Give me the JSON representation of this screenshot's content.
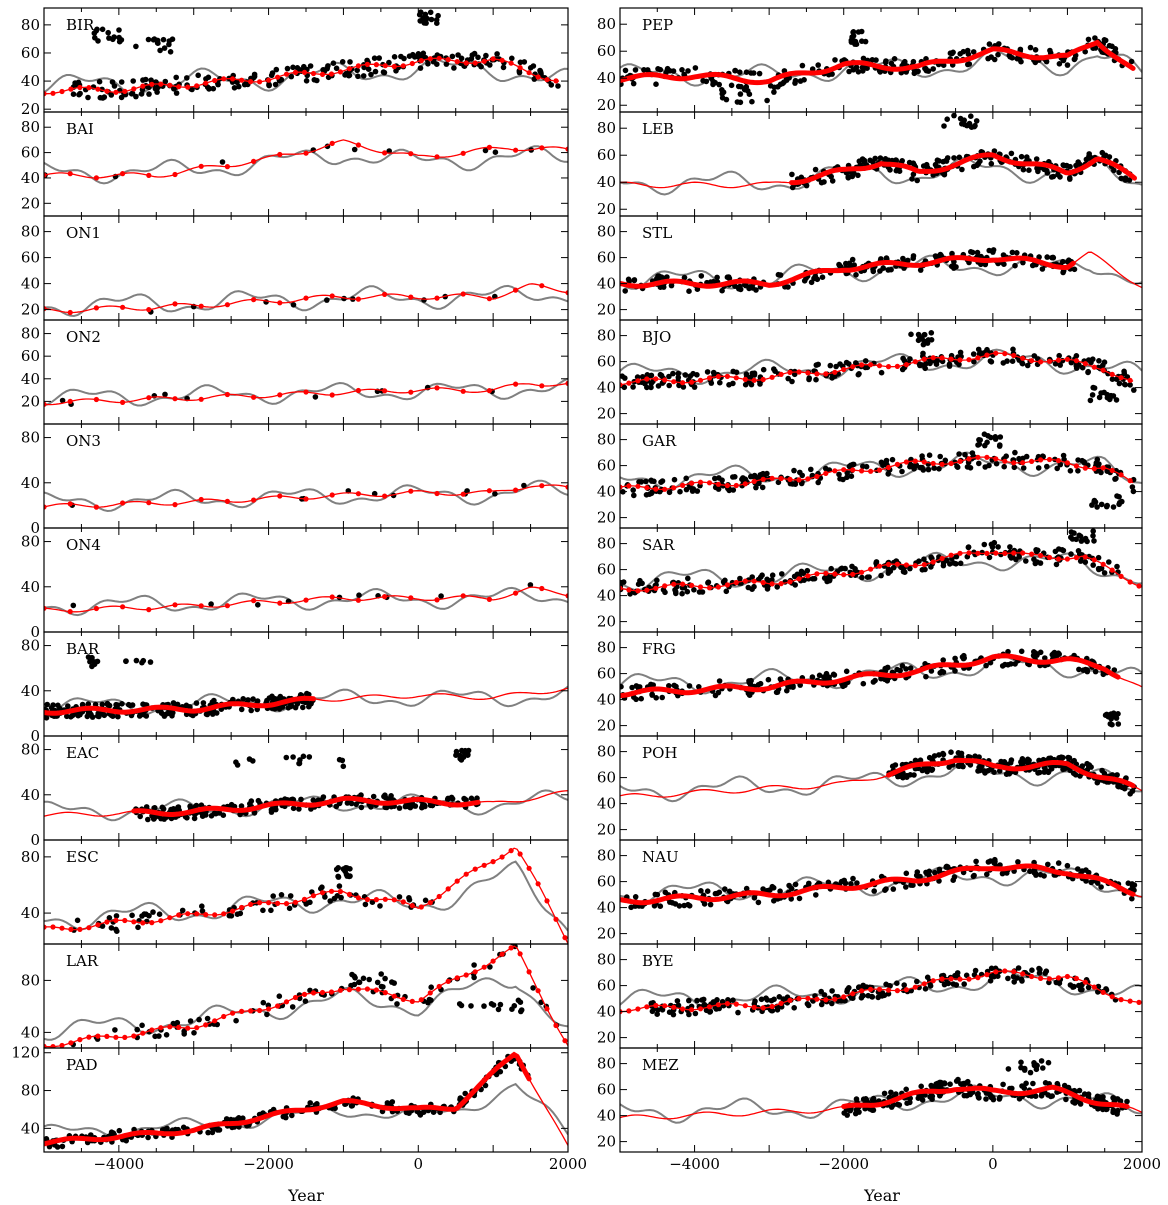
{
  "figure": {
    "xlabel": "Year",
    "x_tick_labels": [
      "−4000",
      "−2000",
      "0",
      "2000"
    ],
    "x_tick_values": [
      -4000,
      -2000,
      0,
      2000
    ],
    "colors": {
      "observed": "#000000",
      "model": "#808080",
      "fit": "#ff0000"
    }
  },
  "chart_data": [
    {
      "type": "scatter",
      "label": "BIR",
      "xlim": [
        -5000,
        2000
      ],
      "ylim": [
        18,
        92
      ],
      "yticks": [
        20,
        40,
        60,
        80
      ],
      "obs_from": -4700,
      "obs_to": 1900,
      "obs_density": "high",
      "fit_from": -5000,
      "fit_to": 1900,
      "fit_dotted": true,
      "model_level": 42,
      "trend": [
        [
          -5000,
          33
        ],
        [
          -4000,
          34
        ],
        [
          -2000,
          42
        ],
        [
          0,
          54
        ],
        [
          1000,
          55
        ],
        [
          2000,
          38
        ]
      ],
      "clusters": [
        {
          "x_from": -4400,
          "x_to": -3900,
          "y": 72
        },
        {
          "x_from": -3800,
          "x_to": -3200,
          "y": 65
        },
        {
          "x_from": 0,
          "x_to": 300,
          "y": 85
        }
      ]
    },
    {
      "type": "scatter",
      "label": "PEP",
      "xlim": [
        -5000,
        2000
      ],
      "ylim": [
        15,
        92
      ],
      "yticks": [
        20,
        40,
        60,
        80
      ],
      "obs_from": -5000,
      "obs_to": 1900,
      "obs_density": "high",
      "fit_from": -5000,
      "fit_to": 1900,
      "fit_dotted": false,
      "model_level": 45,
      "trend": [
        [
          -5000,
          40
        ],
        [
          -4000,
          42
        ],
        [
          -3000,
          38
        ],
        [
          -2000,
          50
        ],
        [
          -1000,
          48
        ],
        [
          0,
          60
        ],
        [
          1000,
          55
        ],
        [
          1400,
          68
        ],
        [
          2000,
          40
        ]
      ],
      "clusters": [
        {
          "x_from": -3700,
          "x_to": -2800,
          "y": 27
        },
        {
          "x_from": -1900,
          "x_to": -1700,
          "y": 70
        }
      ]
    },
    {
      "type": "scatter",
      "label": "BAI",
      "xlim": [
        -5000,
        2000
      ],
      "ylim": [
        10,
        92
      ],
      "yticks": [
        20,
        40,
        60,
        80
      ],
      "obs_from": -5000,
      "obs_to": 1600,
      "obs_density": "low",
      "fit_from": -5000,
      "fit_to": 2000,
      "fit_dotted": true,
      "model_level": 48,
      "trend": [
        [
          -5000,
          42
        ],
        [
          -3500,
          42
        ],
        [
          -2000,
          55
        ],
        [
          -1000,
          68
        ],
        [
          0,
          56
        ],
        [
          1200,
          64
        ],
        [
          2000,
          62
        ]
      ],
      "clusters": []
    },
    {
      "type": "scatter",
      "label": "LEB",
      "xlim": [
        -5000,
        2000
      ],
      "ylim": [
        15,
        92
      ],
      "yticks": [
        20,
        40,
        60,
        80
      ],
      "obs_from": -2700,
      "obs_to": 1900,
      "obs_density": "high",
      "fit_from": -5000,
      "fit_to": 1900,
      "fit_dotted": false,
      "model_level": 42,
      "trend": [
        [
          -5000,
          38
        ],
        [
          -3000,
          38
        ],
        [
          -2000,
          48
        ],
        [
          -1500,
          55
        ],
        [
          -1000,
          47
        ],
        [
          0,
          60
        ],
        [
          1000,
          47
        ],
        [
          1400,
          58
        ],
        [
          2000,
          40
        ]
      ],
      "clusters": [
        {
          "x_from": -700,
          "x_to": -200,
          "y": 85
        }
      ]
    },
    {
      "type": "scatter",
      "label": "ON1",
      "xlim": [
        -5000,
        2000
      ],
      "ylim": [
        12,
        92
      ],
      "yticks": [
        20,
        40,
        60,
        80
      ],
      "obs_from": -4800,
      "obs_to": 1500,
      "obs_density": "low",
      "fit_from": -5000,
      "fit_to": 2000,
      "fit_dotted": true,
      "model_level": 28,
      "trend": [
        [
          -5000,
          19
        ],
        [
          -3000,
          23
        ],
        [
          -1000,
          30
        ],
        [
          0,
          30
        ],
        [
          1000,
          30
        ],
        [
          1500,
          38
        ],
        [
          2000,
          35
        ]
      ],
      "clusters": []
    },
    {
      "type": "scatter",
      "label": "STL",
      "xlim": [
        -5000,
        2000
      ],
      "ylim": [
        12,
        92
      ],
      "yticks": [
        20,
        40,
        60,
        80
      ],
      "obs_from": -5000,
      "obs_to": 1100,
      "obs_density": "high",
      "fit_from": -5000,
      "fit_to": 2000,
      "fit_dotted": false,
      "model_level": 48,
      "trend": [
        [
          -5000,
          40
        ],
        [
          -3000,
          40
        ],
        [
          -2000,
          52
        ],
        [
          0,
          60
        ],
        [
          1000,
          54
        ],
        [
          1300,
          63
        ],
        [
          2000,
          38
        ]
      ],
      "clusters": []
    },
    {
      "type": "scatter",
      "label": "ON2",
      "xlim": [
        -5000,
        2000
      ],
      "ylim": [
        0,
        92
      ],
      "yticks": [
        20,
        40,
        60,
        80
      ],
      "obs_from": -4800,
      "obs_to": 1000,
      "obs_density": "low",
      "fit_from": -5000,
      "fit_to": 2000,
      "fit_dotted": true,
      "model_level": 28,
      "trend": [
        [
          -5000,
          19
        ],
        [
          -3000,
          23
        ],
        [
          -1000,
          28
        ],
        [
          0,
          30
        ],
        [
          1000,
          30
        ],
        [
          1500,
          36
        ],
        [
          2000,
          35
        ]
      ],
      "clusters": []
    },
    {
      "type": "scatter",
      "label": "BJO",
      "xlim": [
        -5000,
        2000
      ],
      "ylim": [
        12,
        92
      ],
      "yticks": [
        20,
        40,
        60,
        80
      ],
      "obs_from": -5000,
      "obs_to": 1900,
      "obs_density": "high",
      "fit_from": -5000,
      "fit_to": 1900,
      "fit_dotted": true,
      "model_level": 58,
      "trend": [
        [
          -5000,
          44
        ],
        [
          -3000,
          48
        ],
        [
          -1000,
          60
        ],
        [
          0,
          65
        ],
        [
          1000,
          60
        ],
        [
          1500,
          55
        ],
        [
          2000,
          40
        ]
      ],
      "clusters": [
        {
          "x_from": -1100,
          "x_to": -800,
          "y": 78
        },
        {
          "x_from": 1300,
          "x_to": 1700,
          "y": 35
        }
      ]
    },
    {
      "type": "scatter",
      "label": "ON3",
      "xlim": [
        -5000,
        2000
      ],
      "ylim": [
        0,
        92
      ],
      "yticks": [
        0,
        40,
        80
      ],
      "obs_from": -4800,
      "obs_to": 1500,
      "obs_density": "low",
      "fit_from": -5000,
      "fit_to": 2000,
      "fit_dotted": true,
      "model_level": 28,
      "trend": [
        [
          -5000,
          19
        ],
        [
          -3000,
          23
        ],
        [
          -1000,
          29
        ],
        [
          0,
          31
        ],
        [
          1000,
          31
        ],
        [
          1500,
          38
        ],
        [
          2000,
          35
        ]
      ],
      "clusters": []
    },
    {
      "type": "scatter",
      "label": "GAR",
      "xlim": [
        -5000,
        2000
      ],
      "ylim": [
        12,
        92
      ],
      "yticks": [
        20,
        40,
        60,
        80
      ],
      "obs_from": -5000,
      "obs_to": 1900,
      "obs_density": "high",
      "fit_from": -5000,
      "fit_to": 1900,
      "fit_dotted": true,
      "model_level": 58,
      "trend": [
        [
          -5000,
          42
        ],
        [
          -3000,
          48
        ],
        [
          -1000,
          62
        ],
        [
          0,
          65
        ],
        [
          1000,
          62
        ],
        [
          1500,
          58
        ],
        [
          2000,
          42
        ]
      ],
      "clusters": [
        {
          "x_from": -200,
          "x_to": 100,
          "y": 80
        },
        {
          "x_from": 1300,
          "x_to": 1800,
          "y": 32
        }
      ]
    },
    {
      "type": "scatter",
      "label": "ON4",
      "xlim": [
        -5000,
        2000
      ],
      "ylim": [
        0,
        92
      ],
      "yticks": [
        0,
        40,
        80
      ],
      "obs_from": -4800,
      "obs_to": 1500,
      "obs_density": "low",
      "fit_from": -5000,
      "fit_to": 2000,
      "fit_dotted": true,
      "model_level": 28,
      "trend": [
        [
          -5000,
          19
        ],
        [
          -3000,
          23
        ],
        [
          -1000,
          30
        ],
        [
          0,
          30
        ],
        [
          1000,
          30
        ],
        [
          1500,
          38
        ],
        [
          2000,
          34
        ]
      ],
      "clusters": []
    },
    {
      "type": "scatter",
      "label": "SAR",
      "xlim": [
        -5000,
        2000
      ],
      "ylim": [
        12,
        92
      ],
      "yticks": [
        20,
        40,
        60,
        80
      ],
      "obs_from": -5000,
      "obs_to": 1700,
      "obs_density": "high",
      "fit_from": -5000,
      "fit_to": 2000,
      "fit_dotted": true,
      "model_level": 60,
      "trend": [
        [
          -5000,
          45
        ],
        [
          -3000,
          50
        ],
        [
          -1000,
          65
        ],
        [
          0,
          75
        ],
        [
          500,
          70
        ],
        [
          1200,
          70
        ],
        [
          2000,
          48
        ]
      ],
      "clusters": [
        {
          "x_from": 1000,
          "x_to": 1400,
          "y": 85
        }
      ]
    },
    {
      "type": "scatter",
      "label": "BAR",
      "xlim": [
        -5000,
        2000
      ],
      "ylim": [
        0,
        92
      ],
      "yticks": [
        0,
        40,
        80
      ],
      "obs_from": -5000,
      "obs_to": -1400,
      "obs_density": "high",
      "fit_from": -5000,
      "fit_to": 2000,
      "fit_dotted": false,
      "model_level": 32,
      "trend": [
        [
          -5000,
          22
        ],
        [
          -3000,
          24
        ],
        [
          -1400,
          32
        ],
        [
          0,
          36
        ],
        [
          1000,
          34
        ],
        [
          2000,
          42
        ]
      ],
      "clusters": [
        {
          "x_from": -4500,
          "x_to": -3500,
          "y": 65
        }
      ]
    },
    {
      "type": "scatter",
      "label": "FRG",
      "xlim": [
        -5000,
        2000
      ],
      "ylim": [
        12,
        92
      ],
      "yticks": [
        20,
        40,
        60,
        80
      ],
      "obs_from": -5000,
      "obs_to": 1700,
      "obs_density": "high",
      "fit_from": -5000,
      "fit_to": 2000,
      "fit_dotted": false,
      "model_level": 60,
      "trend": [
        [
          -5000,
          45
        ],
        [
          -3000,
          50
        ],
        [
          -1000,
          62
        ],
        [
          0,
          72
        ],
        [
          1000,
          70
        ],
        [
          1500,
          65
        ],
        [
          2000,
          48
        ]
      ],
      "clusters": [
        {
          "x_from": 1500,
          "x_to": 1700,
          "y": 25
        }
      ]
    },
    {
      "type": "scatter",
      "label": "EAC",
      "xlim": [
        -5000,
        2000
      ],
      "ylim": [
        0,
        92
      ],
      "yticks": [
        0,
        40,
        80
      ],
      "obs_from": -3800,
      "obs_to": 800,
      "obs_density": "high",
      "fit_from": -5000,
      "fit_to": 2000,
      "fit_dotted": false,
      "model_level": 30,
      "trend": [
        [
          -5000,
          22
        ],
        [
          -3000,
          25
        ],
        [
          -1000,
          35
        ],
        [
          0,
          34
        ],
        [
          1000,
          32
        ],
        [
          2000,
          42
        ]
      ],
      "clusters": [
        {
          "x_from": -2500,
          "x_to": -1000,
          "y": 70
        },
        {
          "x_from": 500,
          "x_to": 700,
          "y": 75
        }
      ]
    },
    {
      "type": "scatter",
      "label": "POH",
      "xlim": [
        -5000,
        2000
      ],
      "ylim": [
        12,
        92
      ],
      "yticks": [
        20,
        40,
        60,
        80
      ],
      "obs_from": -1400,
      "obs_to": 1900,
      "obs_density": "high",
      "fit_from": -5000,
      "fit_to": 2000,
      "fit_dotted": false,
      "model_level": 55,
      "trend": [
        [
          -5000,
          45
        ],
        [
          -2000,
          55
        ],
        [
          -500,
          75
        ],
        [
          0,
          68
        ],
        [
          1000,
          70
        ],
        [
          2000,
          50
        ]
      ],
      "clusters": []
    },
    {
      "type": "scatter",
      "label": "ESC",
      "xlim": [
        -5000,
        2000
      ],
      "ylim": [
        18,
        92
      ],
      "yticks": [
        40,
        80
      ],
      "obs_from": -4700,
      "obs_to": 200,
      "obs_density": "medium",
      "fit_from": -5000,
      "fit_to": 2000,
      "fit_dotted": true,
      "model_level": 45,
      "trend": [
        [
          -5000,
          28
        ],
        [
          -3000,
          38
        ],
        [
          -1000,
          55
        ],
        [
          0,
          44
        ],
        [
          1300,
          88
        ],
        [
          2000,
          20
        ]
      ],
      "clusters": [
        {
          "x_from": -1100,
          "x_to": -900,
          "y": 68
        }
      ]
    },
    {
      "type": "scatter",
      "label": "NAU",
      "xlim": [
        -5000,
        2000
      ],
      "ylim": [
        12,
        92
      ],
      "yticks": [
        20,
        40,
        60,
        80
      ],
      "obs_from": -5000,
      "obs_to": 1900,
      "obs_density": "high",
      "fit_from": -5000,
      "fit_to": 2000,
      "fit_dotted": false,
      "model_level": 58,
      "trend": [
        [
          -5000,
          45
        ],
        [
          -3000,
          50
        ],
        [
          -1000,
          62
        ],
        [
          0,
          72
        ],
        [
          1000,
          68
        ],
        [
          2000,
          50
        ]
      ],
      "clusters": []
    },
    {
      "type": "scatter",
      "label": "LAR",
      "xlim": [
        -5000,
        2000
      ],
      "ylim": [
        28,
        108
      ],
      "yticks": [
        40,
        80
      ],
      "obs_from": -4800,
      "obs_to": 1900,
      "obs_density": "medium",
      "fit_from": -5000,
      "fit_to": 2000,
      "fit_dotted": true,
      "model_level": 55,
      "trend": [
        [
          -5000,
          30
        ],
        [
          -3000,
          45
        ],
        [
          -1000,
          75
        ],
        [
          0,
          65
        ],
        [
          1300,
          105
        ],
        [
          2000,
          30
        ]
      ],
      "clusters": [
        {
          "x_from": -900,
          "x_to": -300,
          "y": 80
        },
        {
          "x_from": 500,
          "x_to": 1400,
          "y": 60
        }
      ]
    },
    {
      "type": "scatter",
      "label": "BYE",
      "xlim": [
        -5000,
        2000
      ],
      "ylim": [
        12,
        92
      ],
      "yticks": [
        20,
        40,
        60,
        80
      ],
      "obs_from": -4600,
      "obs_to": 1700,
      "obs_density": "high",
      "fit_from": -5000,
      "fit_to": 2000,
      "fit_dotted": true,
      "model_level": 58,
      "trend": [
        [
          -5000,
          42
        ],
        [
          -3000,
          45
        ],
        [
          -1000,
          60
        ],
        [
          0,
          70
        ],
        [
          1000,
          66
        ],
        [
          2000,
          45
        ]
      ],
      "clusters": []
    },
    {
      "type": "scatter",
      "label": "PAD",
      "xlim": [
        -5000,
        2000
      ],
      "ylim": [
        15,
        125
      ],
      "yticks": [
        40,
        80,
        120
      ],
      "obs_from": -5000,
      "obs_to": 1500,
      "obs_density": "high",
      "fit_from": -5000,
      "fit_to": 2000,
      "fit_dotted": false,
      "model_level": 48,
      "trend": [
        [
          -5000,
          25
        ],
        [
          -3000,
          38
        ],
        [
          -1000,
          68
        ],
        [
          0,
          60
        ],
        [
          500,
          62
        ],
        [
          1300,
          120
        ],
        [
          2000,
          20
        ]
      ],
      "clusters": []
    },
    {
      "type": "scatter",
      "label": "MEZ",
      "xlim": [
        -5000,
        2000
      ],
      "ylim": [
        12,
        92
      ],
      "yticks": [
        20,
        40,
        60,
        80
      ],
      "obs_from": -2000,
      "obs_to": 1800,
      "obs_density": "high",
      "fit_from": -5000,
      "fit_to": 2000,
      "fit_dotted": false,
      "model_level": 48,
      "trend": [
        [
          -5000,
          38
        ],
        [
          -2000,
          45
        ],
        [
          -500,
          62
        ],
        [
          0,
          58
        ],
        [
          800,
          60
        ],
        [
          2000,
          42
        ]
      ],
      "clusters": [
        {
          "x_from": 200,
          "x_to": 800,
          "y": 78
        }
      ]
    }
  ]
}
